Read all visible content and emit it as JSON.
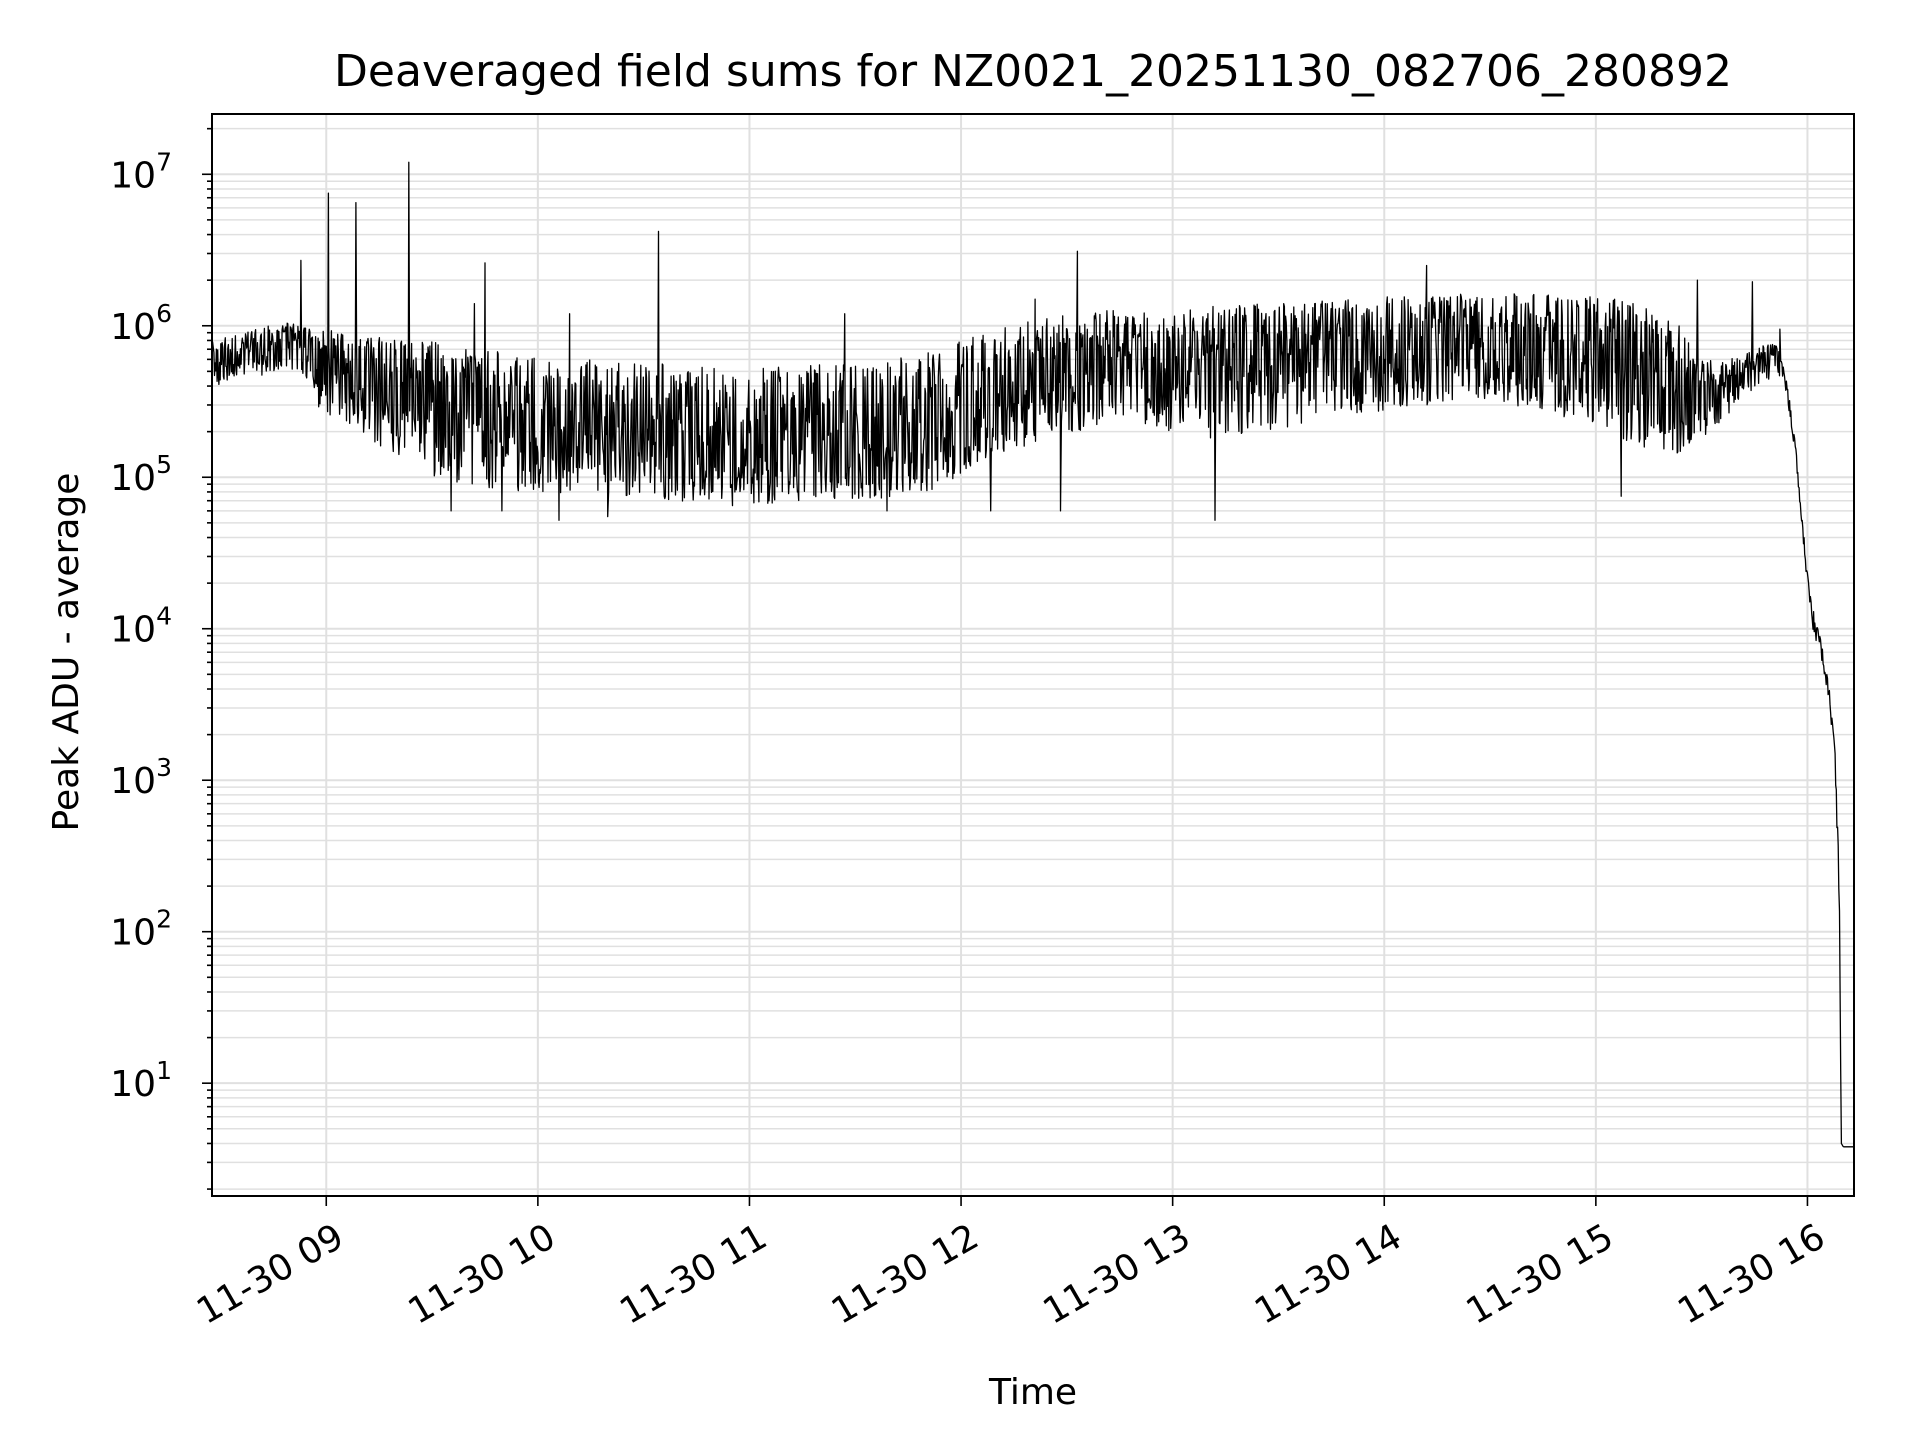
{
  "chart_data": {
    "type": "line",
    "title": "Deaveraged field sums for NZ0021_20251130_082706_280892",
    "xlabel": "Time",
    "ylabel": "Peak ADU - average",
    "yscale": "log",
    "ylim": [
      1.8,
      25000000
    ],
    "xlim_hours": [
      8.46,
      16.22
    ],
    "grid": true,
    "legend": "none",
    "colors": {
      "line": "#000000",
      "grid": "#e0e0e0",
      "axes": "#000000",
      "background": "#ffffff"
    },
    "x_ticks": [
      {
        "value": 9,
        "label": "11-30 09"
      },
      {
        "value": 10,
        "label": "11-30 10"
      },
      {
        "value": 11,
        "label": "11-30 11"
      },
      {
        "value": 12,
        "label": "11-30 12"
      },
      {
        "value": 13,
        "label": "11-30 13"
      },
      {
        "value": 14,
        "label": "11-30 14"
      },
      {
        "value": 15,
        "label": "11-30 15"
      },
      {
        "value": 16,
        "label": "11-30 16"
      }
    ],
    "y_ticks": [
      {
        "value": 10,
        "base": "10",
        "exp": "1"
      },
      {
        "value": 100,
        "base": "10",
        "exp": "2"
      },
      {
        "value": 1000,
        "base": "10",
        "exp": "3"
      },
      {
        "value": 10000,
        "base": "10",
        "exp": "4"
      },
      {
        "value": 100000,
        "base": "10",
        "exp": "5"
      },
      {
        "value": 1000000,
        "base": "10",
        "exp": "6"
      },
      {
        "value": 10000000,
        "base": "10",
        "exp": "7"
      }
    ],
    "series": [
      {
        "name": "Deaveraged field sum",
        "x_hours": [
          8.46,
          8.55,
          8.65,
          8.75,
          8.85,
          8.95,
          9.05,
          9.15,
          9.3,
          9.45,
          9.6,
          9.75,
          9.9,
          10.0,
          10.2,
          10.4,
          10.6,
          10.8,
          11.0,
          11.2,
          11.4,
          11.6,
          11.8,
          12.0,
          12.2,
          12.4,
          12.6,
          12.8,
          13.0,
          13.2,
          13.4,
          13.6,
          13.8,
          14.0,
          14.2,
          14.4,
          14.6,
          14.8,
          15.0,
          15.2,
          15.4,
          15.5,
          15.6,
          15.7,
          15.8,
          15.86,
          15.9,
          15.94,
          15.97,
          16.0,
          16.03,
          16.06,
          16.1,
          16.13,
          16.15,
          16.16,
          16.17,
          16.2,
          16.22
        ],
        "level_median": [
          570000,
          600000,
          650000,
          720000,
          780000,
          600000,
          520000,
          480000,
          420000,
          380000,
          320000,
          300000,
          260000,
          250000,
          220000,
          210000,
          200000,
          180000,
          160000,
          170000,
          160000,
          175000,
          190000,
          250000,
          330000,
          420000,
          500000,
          560000,
          560000,
          550000,
          570000,
          600000,
          640000,
          680000,
          720000,
          760000,
          740000,
          720000,
          700000,
          600000,
          450000,
          330000,
          380000,
          470000,
          570000,
          630000,
          400000,
          170000,
          60000,
          20000,
          11000,
          8000,
          4000,
          1500,
          200,
          4,
          3.8,
          3.8,
          3.8
        ],
        "level_low": [
          400000,
          420000,
          450000,
          500000,
          480000,
          300000,
          240000,
          190000,
          150000,
          110000,
          90000,
          85000,
          80000,
          78000,
          75000,
          72000,
          70000,
          68000,
          66000,
          68000,
          70000,
          72000,
          76000,
          100000,
          140000,
          180000,
          210000,
          230000,
          200000,
          160000,
          190000,
          220000,
          250000,
          270000,
          300000,
          330000,
          300000,
          260000,
          220000,
          150000,
          130000,
          180000,
          240000,
          320000,
          420000,
          500000,
          350000,
          150000,
          55000,
          18000,
          9000,
          7000,
          3500,
          1200,
          150,
          4,
          3.8,
          3.8,
          3.8
        ],
        "level_high": [
          800000,
          850000,
          950000,
          1050000,
          1100000,
          1000000,
          950000,
          900000,
          850000,
          800000,
          750000,
          700000,
          650000,
          620000,
          600000,
          580000,
          560000,
          540000,
          520000,
          540000,
          560000,
          600000,
          650000,
          800000,
          1000000,
          1150000,
          1250000,
          1300000,
          1350000,
          1350000,
          1400000,
          1450000,
          1500000,
          1550000,
          1600000,
          1650000,
          1650000,
          1600000,
          1550000,
          1450000,
          1000000,
          600000,
          580000,
          650000,
          750000,
          760000,
          450000,
          190000,
          66000,
          23000,
          13000,
          9000,
          4500,
          1700,
          250,
          4,
          3.8,
          3.8,
          3.8
        ],
        "spikes": [
          {
            "x": 8.88,
            "y": 2700000
          },
          {
            "x": 9.01,
            "y": 7500000
          },
          {
            "x": 9.14,
            "y": 6500000
          },
          {
            "x": 9.39,
            "y": 12000000
          },
          {
            "x": 9.75,
            "y": 2600000
          },
          {
            "x": 10.57,
            "y": 4200000
          },
          {
            "x": 12.55,
            "y": 3100000
          },
          {
            "x": 14.2,
            "y": 2500000
          },
          {
            "x": 15.48,
            "y": 2000000
          },
          {
            "x": 15.74,
            "y": 1950000
          },
          {
            "x": 15.87,
            "y": 950000
          },
          {
            "x": 9.7,
            "y": 1400000
          },
          {
            "x": 10.15,
            "y": 1200000
          },
          {
            "x": 11.45,
            "y": 1200000
          },
          {
            "x": 12.35,
            "y": 1500000
          }
        ],
        "dips": [
          {
            "x": 9.59,
            "y": 60000
          },
          {
            "x": 9.83,
            "y": 60000
          },
          {
            "x": 10.1,
            "y": 52000
          },
          {
            "x": 10.33,
            "y": 55000
          },
          {
            "x": 10.92,
            "y": 65000
          },
          {
            "x": 11.65,
            "y": 60000
          },
          {
            "x": 12.14,
            "y": 60000
          },
          {
            "x": 12.47,
            "y": 60000
          },
          {
            "x": 13.2,
            "y": 52000
          },
          {
            "x": 15.12,
            "y": 75000
          }
        ]
      }
    ]
  }
}
